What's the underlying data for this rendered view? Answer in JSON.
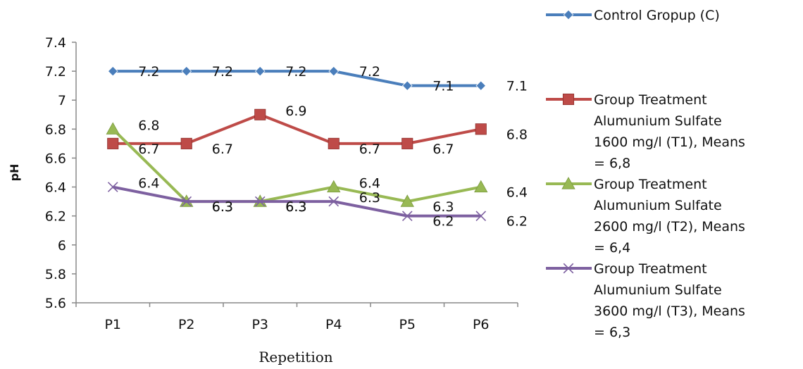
{
  "chart_data": {
    "type": "line",
    "xlabel": "Repetition",
    "ylabel": "pH",
    "categories": [
      "P1",
      "P2",
      "P3",
      "P4",
      "P5",
      "P6"
    ],
    "ylim": [
      5.6,
      7.4
    ],
    "yticks": [
      "5.6",
      "5.8",
      "6",
      "6.2",
      "6.4",
      "6.6",
      "6.8",
      "7",
      "7.2",
      "7.4"
    ],
    "grid": false,
    "legend_position": "right",
    "series": [
      {
        "name": "Control Gropup (C)",
        "legend_lines": [
          "Control Gropup (C)"
        ],
        "color": "#4a7ebb",
        "marker": "diamond",
        "values": [
          7.2,
          7.2,
          7.2,
          7.2,
          7.1,
          7.1
        ],
        "labels": [
          "7.2",
          "7.2",
          "7.2",
          "7.2",
          "7.1",
          "7.1"
        ]
      },
      {
        "name": "Group Treatment Alumunium Sulfate 1600 mg/l (T1), Means = 6,8",
        "legend_lines": [
          "Group Treatment",
          "Alumunium Sulfate",
          "1600 mg/l (T1), Means",
          "= 6,8"
        ],
        "color": "#be4b48",
        "marker": "square",
        "values": [
          6.7,
          6.7,
          6.9,
          6.7,
          6.7,
          6.8
        ],
        "labels": [
          "6.7",
          "6.7",
          "6.9",
          "6.7",
          "6.7",
          "6.8"
        ]
      },
      {
        "name": "Group Treatment Alumunium Sulfate 2600 mg/l (T2), Means = 6,4",
        "legend_lines": [
          "Group Treatment",
          "Alumunium Sulfate",
          "2600 mg/l (T2), Means",
          "= 6,4"
        ],
        "color": "#98b954",
        "marker": "triangle",
        "values": [
          6.8,
          6.3,
          6.3,
          6.4,
          6.3,
          6.4
        ],
        "labels": [
          "6.8",
          "6.3",
          "6.3",
          "6.4",
          "6.3",
          "6.4"
        ]
      },
      {
        "name": "Group Treatment Alumunium Sulfate 3600 mg/l (T3), Means = 6,3",
        "legend_lines": [
          "Group Treatment",
          "Alumunium Sulfate",
          "3600 mg/l (T3), Means",
          "= 6,3"
        ],
        "color": "#7d60a0",
        "marker": "x",
        "values": [
          6.4,
          6.3,
          6.3,
          6.3,
          6.2,
          6.2
        ],
        "labels": [
          "6.4",
          "6.3",
          "6.3",
          "6.3",
          "6.2",
          "6.2"
        ]
      }
    ]
  }
}
